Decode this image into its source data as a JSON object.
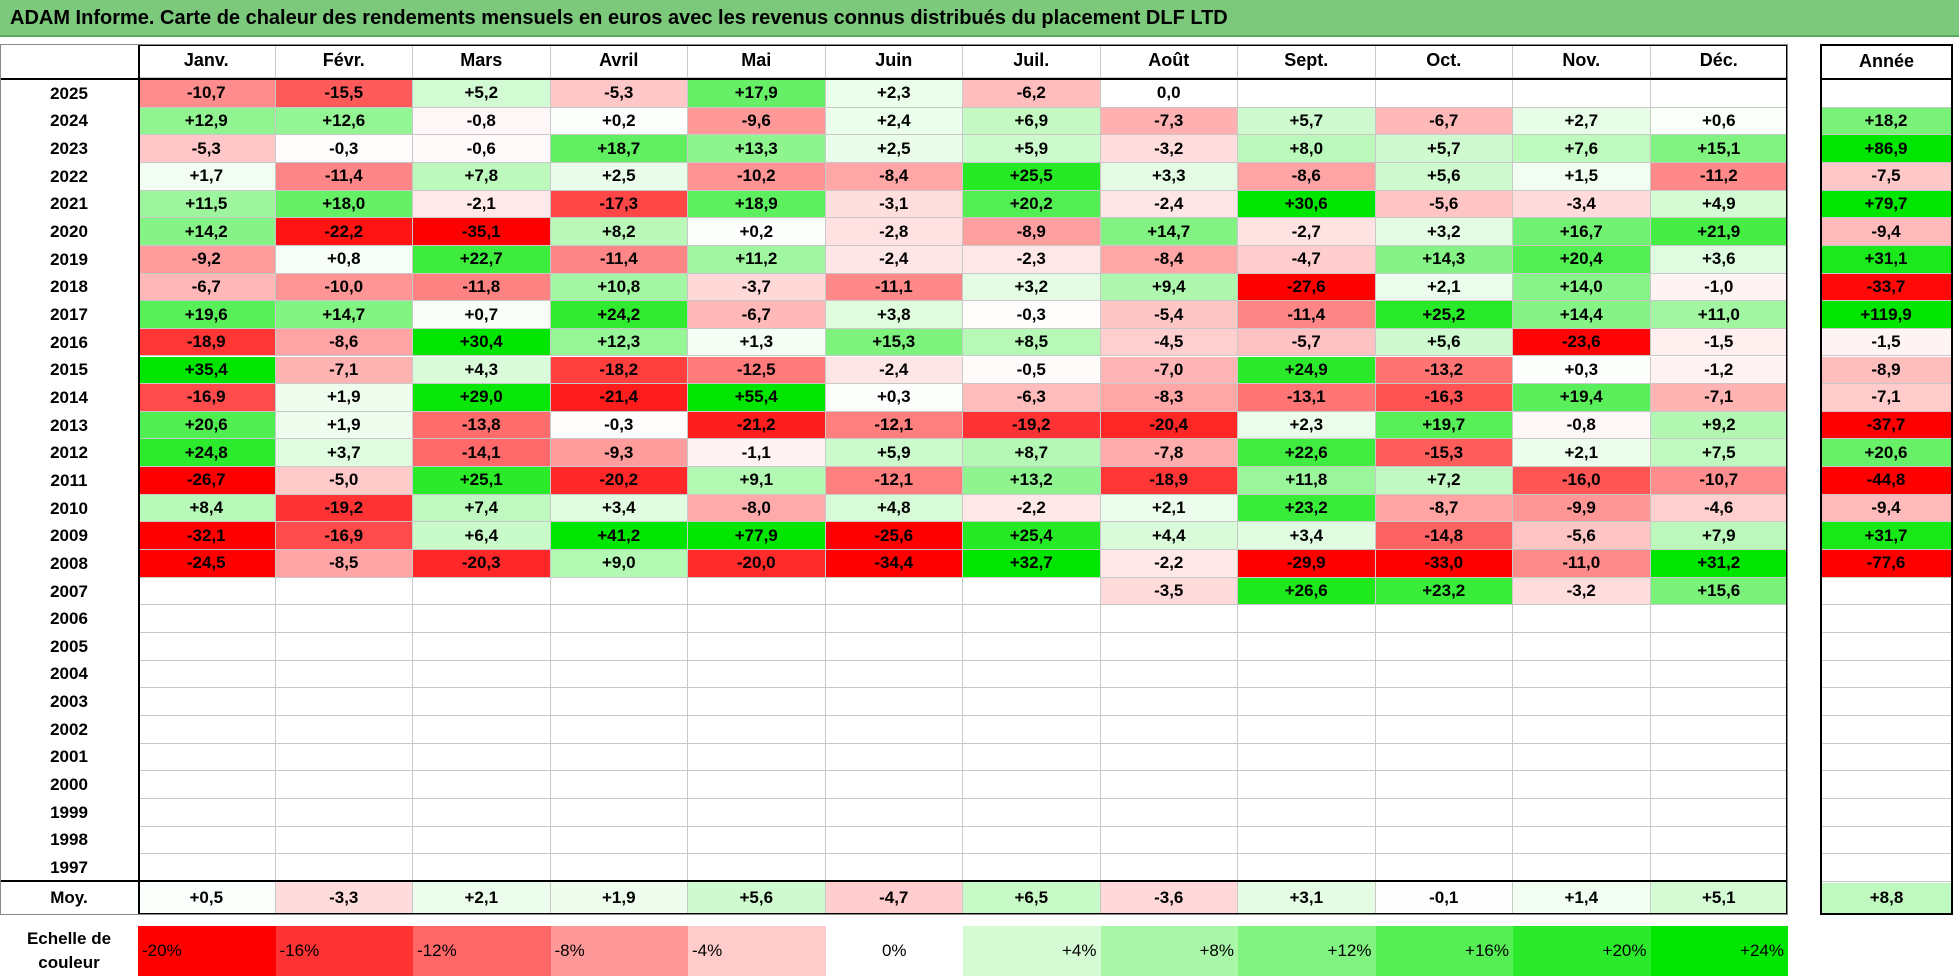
{
  "title": "ADAM Informe. Carte de chaleur des rendements mensuels en euros avec les revenus connus distribués du placement DLF LTD",
  "colors": {
    "title_bg": "#7cc97c",
    "neg_full": "#ff0000",
    "pos_full": "#00e600",
    "neutral": "#ffffff"
  },
  "chart_data": {
    "type": "heatmap",
    "columns": [
      "Janv.",
      "Févr.",
      "Mars",
      "Avril",
      "Mai",
      "Juin",
      "Juil.",
      "Août",
      "Sept.",
      "Oct.",
      "Nov.",
      "Déc."
    ],
    "annual_header": "Année",
    "rows": [
      {
        "year": "2025",
        "values": [
          -10.7,
          -15.5,
          5.2,
          -5.3,
          17.9,
          2.3,
          -6.2,
          0.0,
          null,
          null,
          null,
          null
        ],
        "annual": null
      },
      {
        "year": "2024",
        "values": [
          12.9,
          12.6,
          -0.8,
          0.2,
          -9.6,
          2.4,
          6.9,
          -7.3,
          5.7,
          -6.7,
          2.7,
          0.6
        ],
        "annual": 18.2
      },
      {
        "year": "2023",
        "values": [
          -5.3,
          -0.3,
          -0.6,
          18.7,
          13.3,
          2.5,
          5.9,
          -3.2,
          8.0,
          5.7,
          7.6,
          15.1
        ],
        "annual": 86.9
      },
      {
        "year": "2022",
        "values": [
          1.7,
          -11.4,
          7.8,
          2.5,
          -10.2,
          -8.4,
          25.5,
          3.3,
          -8.6,
          5.6,
          1.5,
          -11.2
        ],
        "annual": -7.5
      },
      {
        "year": "2021",
        "values": [
          11.5,
          18.0,
          -2.1,
          -17.3,
          18.9,
          -3.1,
          20.2,
          -2.4,
          30.6,
          -5.6,
          -3.4,
          4.9
        ],
        "annual": 79.7
      },
      {
        "year": "2020",
        "values": [
          14.2,
          -22.2,
          -35.1,
          8.2,
          0.2,
          -2.8,
          -8.9,
          14.7,
          -2.7,
          3.2,
          16.7,
          21.9
        ],
        "annual": -9.4
      },
      {
        "year": "2019",
        "values": [
          -9.2,
          0.8,
          22.7,
          -11.4,
          11.2,
          -2.4,
          -2.3,
          -8.4,
          -4.7,
          14.3,
          20.4,
          3.6
        ],
        "annual": 31.1
      },
      {
        "year": "2018",
        "values": [
          -6.7,
          -10.0,
          -11.8,
          10.8,
          -3.7,
          -11.1,
          3.2,
          9.4,
          -27.6,
          2.1,
          14.0,
          -1.0
        ],
        "annual": -33.7
      },
      {
        "year": "2017",
        "values": [
          19.6,
          14.7,
          0.7,
          24.2,
          -6.7,
          3.8,
          -0.3,
          -5.4,
          -11.4,
          25.2,
          14.4,
          11.0
        ],
        "annual": 119.9
      },
      {
        "year": "2016",
        "values": [
          -18.9,
          -8.6,
          30.4,
          12.3,
          1.3,
          15.3,
          8.5,
          -4.5,
          -5.7,
          5.6,
          -23.6,
          -1.5
        ],
        "annual": -1.5
      },
      {
        "year": "2015",
        "values": [
          35.4,
          -7.1,
          4.3,
          -18.2,
          -12.5,
          -2.4,
          -0.5,
          -7.0,
          24.9,
          -13.2,
          0.3,
          -1.2
        ],
        "annual": -8.9
      },
      {
        "year": "2014",
        "values": [
          -16.9,
          1.9,
          29.0,
          -21.4,
          55.4,
          0.3,
          -6.3,
          -8.3,
          -13.1,
          -16.3,
          19.4,
          -7.1
        ],
        "annual": -7.1
      },
      {
        "year": "2013",
        "values": [
          20.6,
          1.9,
          -13.8,
          -0.3,
          -21.2,
          -12.1,
          -19.2,
          -20.4,
          2.3,
          19.7,
          -0.8,
          9.2
        ],
        "annual": -37.7
      },
      {
        "year": "2012",
        "values": [
          24.8,
          3.7,
          -14.1,
          -9.3,
          -1.1,
          5.9,
          8.7,
          -7.8,
          22.6,
          -15.3,
          2.1,
          7.5
        ],
        "annual": 20.6
      },
      {
        "year": "2011",
        "values": [
          -26.7,
          -5.0,
          25.1,
          -20.2,
          9.1,
          -12.1,
          13.2,
          -18.9,
          11.8,
          7.2,
          -16.0,
          -10.7
        ],
        "annual": -44.8
      },
      {
        "year": "2010",
        "values": [
          8.4,
          -19.2,
          7.4,
          3.4,
          -8.0,
          4.8,
          -2.2,
          2.1,
          23.2,
          -8.7,
          -9.9,
          -4.6
        ],
        "annual": -9.4
      },
      {
        "year": "2009",
        "values": [
          -32.1,
          -16.9,
          6.4,
          41.2,
          77.9,
          -25.6,
          25.4,
          4.4,
          3.4,
          -14.8,
          -5.6,
          7.9
        ],
        "annual": 31.7
      },
      {
        "year": "2008",
        "values": [
          -24.5,
          -8.5,
          -20.3,
          9.0,
          -20.0,
          -34.4,
          32.7,
          -2.2,
          -29.9,
          -33.0,
          -11.0,
          31.2
        ],
        "annual": -77.6
      },
      {
        "year": "2007",
        "values": [
          null,
          null,
          null,
          null,
          null,
          null,
          null,
          -3.5,
          26.6,
          23.2,
          -3.2,
          15.6
        ],
        "annual": null
      },
      {
        "year": "2006",
        "values": [
          null,
          null,
          null,
          null,
          null,
          null,
          null,
          null,
          null,
          null,
          null,
          null
        ],
        "annual": null
      },
      {
        "year": "2005",
        "values": [
          null,
          null,
          null,
          null,
          null,
          null,
          null,
          null,
          null,
          null,
          null,
          null
        ],
        "annual": null
      },
      {
        "year": "2004",
        "values": [
          null,
          null,
          null,
          null,
          null,
          null,
          null,
          null,
          null,
          null,
          null,
          null
        ],
        "annual": null
      },
      {
        "year": "2003",
        "values": [
          null,
          null,
          null,
          null,
          null,
          null,
          null,
          null,
          null,
          null,
          null,
          null
        ],
        "annual": null
      },
      {
        "year": "2002",
        "values": [
          null,
          null,
          null,
          null,
          null,
          null,
          null,
          null,
          null,
          null,
          null,
          null
        ],
        "annual": null
      },
      {
        "year": "2001",
        "values": [
          null,
          null,
          null,
          null,
          null,
          null,
          null,
          null,
          null,
          null,
          null,
          null
        ],
        "annual": null
      },
      {
        "year": "2000",
        "values": [
          null,
          null,
          null,
          null,
          null,
          null,
          null,
          null,
          null,
          null,
          null,
          null
        ],
        "annual": null
      },
      {
        "year": "1999",
        "values": [
          null,
          null,
          null,
          null,
          null,
          null,
          null,
          null,
          null,
          null,
          null,
          null
        ],
        "annual": null
      },
      {
        "year": "1998",
        "values": [
          null,
          null,
          null,
          null,
          null,
          null,
          null,
          null,
          null,
          null,
          null,
          null
        ],
        "annual": null
      },
      {
        "year": "1997",
        "values": [
          null,
          null,
          null,
          null,
          null,
          null,
          null,
          null,
          null,
          null,
          null,
          null
        ],
        "annual": null
      }
    ],
    "average": {
      "label": "Moy.",
      "values": [
        0.5,
        -3.3,
        2.1,
        1.9,
        5.6,
        -4.7,
        6.5,
        -3.6,
        3.1,
        -0.1,
        1.4,
        5.1
      ],
      "annual": 8.8
    },
    "color_scale": {
      "label": "Echelle de couleur",
      "stops": [
        {
          "label": "-20%",
          "value": -20
        },
        {
          "label": "-16%",
          "value": -16
        },
        {
          "label": "-12%",
          "value": -12
        },
        {
          "label": "-8%",
          "value": -8
        },
        {
          "label": "-4%",
          "value": -4
        },
        {
          "label": "0%",
          "value": 0
        },
        {
          "label": "+4%",
          "value": 4
        },
        {
          "label": "+8%",
          "value": 8
        },
        {
          "label": "+12%",
          "value": 12
        },
        {
          "label": "+16%",
          "value": 16
        },
        {
          "label": "+20%",
          "value": 20
        },
        {
          "label": "+24%",
          "value": 24
        }
      ]
    }
  }
}
